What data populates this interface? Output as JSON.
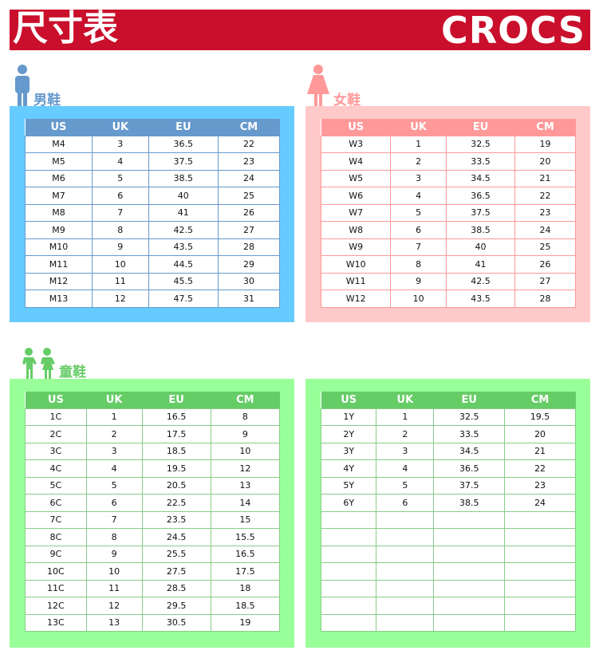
{
  "header": {
    "title": "尺寸表",
    "brand": "CROCS"
  },
  "colors": {
    "header_red": "#c90f2b",
    "men_box": "#66ccff",
    "men_head": "#6699cc",
    "women_box": "#ffc9c9",
    "women_head": "#ff9999",
    "kids_box": "#99ff99",
    "kids_head": "#66cc66"
  },
  "columns": [
    "US",
    "UK",
    "EU",
    "CM"
  ],
  "men": {
    "label": "男鞋",
    "icon": "man-icon",
    "rows": [
      [
        "M4",
        "3",
        "36.5",
        "22"
      ],
      [
        "M5",
        "4",
        "37.5",
        "23"
      ],
      [
        "M6",
        "5",
        "38.5",
        "24"
      ],
      [
        "M7",
        "6",
        "40",
        "25"
      ],
      [
        "M8",
        "7",
        "41",
        "26"
      ],
      [
        "M9",
        "8",
        "42.5",
        "27"
      ],
      [
        "M10",
        "9",
        "43.5",
        "28"
      ],
      [
        "M11",
        "10",
        "44.5",
        "29"
      ],
      [
        "M12",
        "11",
        "45.5",
        "30"
      ],
      [
        "M13",
        "12",
        "47.5",
        "31"
      ]
    ]
  },
  "women": {
    "label": "女鞋",
    "icon": "woman-icon",
    "rows": [
      [
        "W3",
        "1",
        "32.5",
        "19"
      ],
      [
        "W4",
        "2",
        "33.5",
        "20"
      ],
      [
        "W5",
        "3",
        "34.5",
        "21"
      ],
      [
        "W6",
        "4",
        "36.5",
        "22"
      ],
      [
        "W7",
        "5",
        "37.5",
        "23"
      ],
      [
        "W8",
        "6",
        "38.5",
        "24"
      ],
      [
        "W9",
        "7",
        "40",
        "25"
      ],
      [
        "W10",
        "8",
        "41",
        "26"
      ],
      [
        "W11",
        "9",
        "42.5",
        "27"
      ],
      [
        "W12",
        "10",
        "43.5",
        "28"
      ]
    ]
  },
  "kids": {
    "label": "童鞋",
    "icon": "children-icon",
    "rows": [
      [
        "1C",
        "1",
        "16.5",
        "8"
      ],
      [
        "2C",
        "2",
        "17.5",
        "9"
      ],
      [
        "3C",
        "3",
        "18.5",
        "10"
      ],
      [
        "4C",
        "4",
        "19.5",
        "12"
      ],
      [
        "5C",
        "5",
        "20.5",
        "13"
      ],
      [
        "6C",
        "6",
        "22.5",
        "14"
      ],
      [
        "7C",
        "7",
        "23.5",
        "15"
      ],
      [
        "8C",
        "8",
        "24.5",
        "15.5"
      ],
      [
        "9C",
        "9",
        "25.5",
        "16.5"
      ],
      [
        "10C",
        "10",
        "27.5",
        "17.5"
      ],
      [
        "11C",
        "11",
        "28.5",
        "18"
      ],
      [
        "12C",
        "12",
        "29.5",
        "18.5"
      ],
      [
        "13C",
        "13",
        "30.5",
        "19"
      ]
    ]
  },
  "youth": {
    "rows": [
      [
        "1Y",
        "1",
        "32.5",
        "19.5"
      ],
      [
        "2Y",
        "2",
        "33.5",
        "20"
      ],
      [
        "3Y",
        "3",
        "34.5",
        "21"
      ],
      [
        "4Y",
        "4",
        "36.5",
        "22"
      ],
      [
        "5Y",
        "5",
        "37.5",
        "23"
      ],
      [
        "6Y",
        "6",
        "38.5",
        "24"
      ],
      [
        "",
        "",
        "",
        ""
      ],
      [
        "",
        "",
        "",
        ""
      ],
      [
        "",
        "",
        "",
        ""
      ],
      [
        "",
        "",
        "",
        ""
      ],
      [
        "",
        "",
        "",
        ""
      ],
      [
        "",
        "",
        "",
        ""
      ],
      [
        "",
        "",
        "",
        ""
      ]
    ]
  }
}
